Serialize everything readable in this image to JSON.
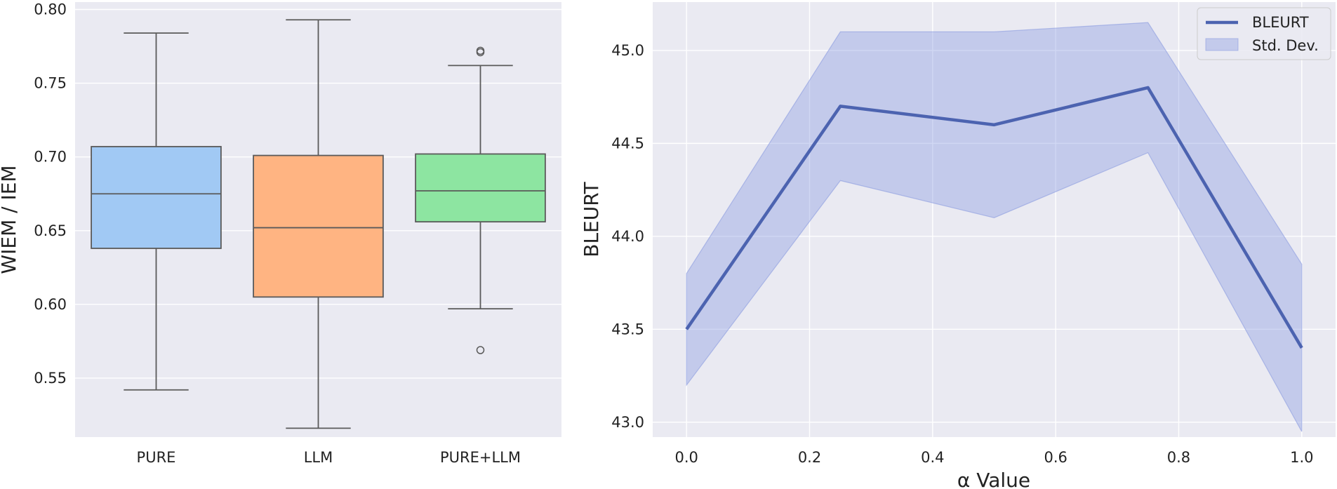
{
  "chart_data": [
    {
      "type": "box",
      "ylabel": "WIEM / IEM",
      "xlabel": "",
      "ylim": [
        0.51,
        0.805
      ],
      "yticks": [
        "0.55",
        "0.60",
        "0.65",
        "0.70",
        "0.75",
        "0.80"
      ],
      "grid": true,
      "boxes": [
        {
          "category": "PURE",
          "whisker_low": 0.542,
          "q1": 0.638,
          "median": 0.675,
          "q3": 0.707,
          "whisker_high": 0.784,
          "outliers": [],
          "color": "#a1c9f4"
        },
        {
          "category": "LLM",
          "whisker_low": 0.516,
          "q1": 0.605,
          "median": 0.652,
          "q3": 0.701,
          "whisker_high": 0.793,
          "outliers": [],
          "color": "#ffb482"
        },
        {
          "category": "PURE+LLM",
          "whisker_low": 0.597,
          "q1": 0.656,
          "median": 0.677,
          "q3": 0.702,
          "whisker_high": 0.762,
          "outliers": [
            0.569,
            0.771,
            0.772
          ],
          "color": "#8de5a1"
        }
      ]
    },
    {
      "type": "line",
      "xlabel": "α Value",
      "ylabel": "BLEURT",
      "xlim": [
        -0.055,
        1.055
      ],
      "ylim": [
        42.92,
        45.26
      ],
      "xticks": [
        "0.0",
        "0.2",
        "0.4",
        "0.6",
        "0.8",
        "1.0"
      ],
      "yticks": [
        "43.0",
        "43.5",
        "44.0",
        "44.5",
        "45.0"
      ],
      "grid": true,
      "legend_position": "top-right",
      "series": [
        {
          "name": "BLEURT",
          "x": [
            0.0,
            0.25,
            0.5,
            0.75,
            1.0
          ],
          "y": [
            43.5,
            44.7,
            44.6,
            44.8,
            43.4
          ],
          "color": "#4c63b0"
        }
      ],
      "band": {
        "name": "Std. Dev.",
        "x": [
          0.0,
          0.25,
          0.5,
          0.75,
          1.0
        ],
        "lower": [
          43.2,
          44.3,
          44.1,
          44.45,
          42.95
        ],
        "upper": [
          43.8,
          45.1,
          45.1,
          45.15,
          43.85
        ],
        "color": "#8a9be0"
      }
    }
  ],
  "colors": {
    "axes_background": "#eaeaf2",
    "grid": "#ffffff",
    "box_edge": "#5a5a5a"
  }
}
